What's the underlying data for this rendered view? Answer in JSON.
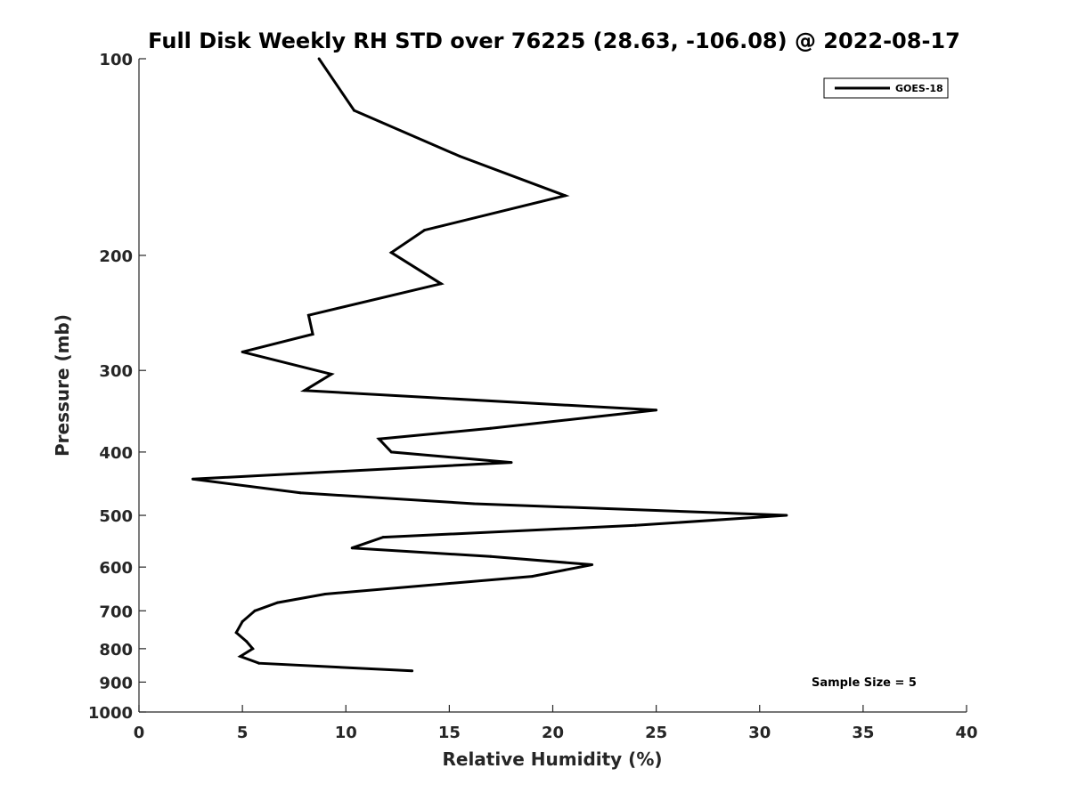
{
  "chart_data": {
    "type": "line",
    "title": "Full Disk Weekly RH STD over 76225 (28.63, -106.08) @ 2022-08-17",
    "xlabel": "Relative Humidity (%)",
    "ylabel": "Pressure (mb)",
    "xlim": [
      0,
      40
    ],
    "ylim": [
      100,
      1000
    ],
    "yscale": "log",
    "y_inverted": true,
    "grid": false,
    "legend_position": "top-right",
    "xticks": [
      0,
      5,
      10,
      15,
      20,
      25,
      30,
      35,
      40
    ],
    "yticks": [
      100,
      200,
      300,
      400,
      500,
      600,
      700,
      800,
      900,
      1000
    ],
    "annotation": "Sample Size = 5",
    "series": [
      {
        "name": "GOES-18",
        "color": "#000000",
        "points": [
          [
            8.7,
            100
          ],
          [
            10.4,
            120
          ],
          [
            15.5,
            141
          ],
          [
            20.6,
            162
          ],
          [
            13.8,
            183
          ],
          [
            12.2,
            198
          ],
          [
            14.6,
            221
          ],
          [
            8.2,
            247
          ],
          [
            8.4,
            264
          ],
          [
            5.0,
            281
          ],
          [
            9.3,
            304
          ],
          [
            8.0,
            322
          ],
          [
            25.0,
            345
          ],
          [
            17.0,
            368
          ],
          [
            11.6,
            382
          ],
          [
            12.2,
            400
          ],
          [
            18.0,
            415
          ],
          [
            2.6,
            440
          ],
          [
            7.8,
            462
          ],
          [
            16.2,
            480
          ],
          [
            31.3,
            500
          ],
          [
            24.0,
            518
          ],
          [
            11.8,
            540
          ],
          [
            10.3,
            561
          ],
          [
            17.0,
            578
          ],
          [
            21.9,
            595
          ],
          [
            19.0,
            620
          ],
          [
            9.0,
            660
          ],
          [
            6.7,
            680
          ],
          [
            5.6,
            700
          ],
          [
            5.0,
            727
          ],
          [
            4.7,
            756
          ],
          [
            5.2,
            780
          ],
          [
            5.5,
            800
          ],
          [
            4.9,
            822
          ],
          [
            5.8,
            842
          ],
          [
            13.2,
            865
          ]
        ]
      }
    ]
  }
}
